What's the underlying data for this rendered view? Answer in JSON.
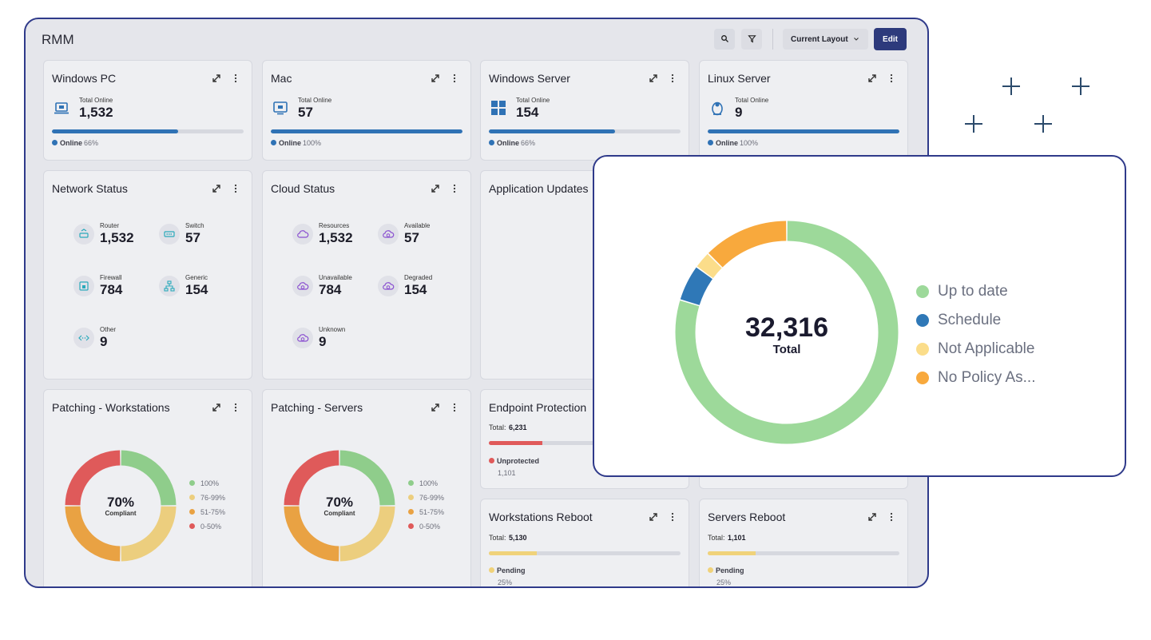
{
  "header": {
    "title": "RMM",
    "layout_button": "Current Layout",
    "edit_button": "Edit"
  },
  "device_cards": [
    {
      "title": "Windows PC",
      "metric_label": "Total Online",
      "metric_value": "1,532",
      "status": "Online",
      "progress": {
        "value": 66,
        "label": "66%"
      }
    },
    {
      "title": "Mac",
      "metric_label": "Total Online",
      "metric_value": "57",
      "status": "Online",
      "progress": {
        "value": 100,
        "label": "100%"
      }
    },
    {
      "title": "Windows Server",
      "metric_label": "Total Online",
      "metric_value": "154",
      "status": "Online",
      "progress": {
        "value": 66,
        "label": "66%"
      }
    },
    {
      "title": "Linux Server",
      "metric_label": "Total Online",
      "metric_value": "9",
      "status": "Online",
      "progress": {
        "value": 100,
        "label": "100%"
      }
    }
  ],
  "status_cards": [
    {
      "title": "Network Status",
      "items": [
        {
          "label": "Router",
          "value": "1,532"
        },
        {
          "label": "Switch",
          "value": "57"
        },
        {
          "label": "Firewall",
          "value": "784"
        },
        {
          "label": "Generic",
          "value": "154"
        },
        {
          "label": "Other",
          "value": "9"
        }
      ]
    },
    {
      "title": "Cloud Status",
      "items": [
        {
          "label": "Resources",
          "value": "1,532"
        },
        {
          "label": "Available",
          "value": "57"
        },
        {
          "label": "Unavailable",
          "value": "784"
        },
        {
          "label": "Degraded",
          "value": "154"
        },
        {
          "label": "Unknown",
          "value": "9"
        }
      ]
    }
  ],
  "application_updates": {
    "title": "Application Updates"
  },
  "patching_cards": [
    {
      "title": "Patching - Workstations",
      "center_value": "70%",
      "center_label": "Compliant",
      "segments": [
        {
          "name": "100%",
          "color": "#8fcd8b",
          "value": 25
        },
        {
          "name": "76-99%",
          "color": "#ecce7e",
          "value": 25
        },
        {
          "name": "51-75%",
          "color": "#e9a243",
          "value": 25
        },
        {
          "name": "0-50%",
          "color": "#df5a5a",
          "value": 25
        }
      ]
    },
    {
      "title": "Patching - Servers",
      "center_value": "70%",
      "center_label": "Compliant",
      "segments": [
        {
          "name": "100%",
          "color": "#8fcd8b",
          "value": 25
        },
        {
          "name": "76-99%",
          "color": "#ecce7e",
          "value": 25
        },
        {
          "name": "51-75%",
          "color": "#e9a243",
          "value": 25
        },
        {
          "name": "0-50%",
          "color": "#df5a5a",
          "value": 25
        }
      ]
    }
  ],
  "endpoint_protection": {
    "title": "Endpoint Protection",
    "total_label": "Total:",
    "total": "6,231",
    "status": "Unprotected",
    "count": "1,101",
    "bar_percent": 28
  },
  "reboot_cards": [
    {
      "title": "Workstations Reboot",
      "total_label": "Total:",
      "total": "5,130",
      "status": "Pending",
      "progress": {
        "value": 25,
        "label": "25%"
      }
    },
    {
      "title": "Servers Reboot",
      "total_label": "Total:",
      "total": "1,101",
      "status": "Pending",
      "progress": {
        "value": 25,
        "label": "25%"
      }
    }
  ],
  "popup_chart": {
    "total": "32,316",
    "total_label": "Total",
    "segments": [
      {
        "name": "Up to date",
        "color": "#9dd99a",
        "value": 25760
      },
      {
        "name": "Schedule",
        "color": "#2f78b7",
        "value": 1710
      },
      {
        "name": "Not Applicable",
        "color": "#fbdd8a",
        "value": 808
      },
      {
        "name": "No Policy As...",
        "color": "#f8a93d",
        "value": 4038
      }
    ]
  }
}
